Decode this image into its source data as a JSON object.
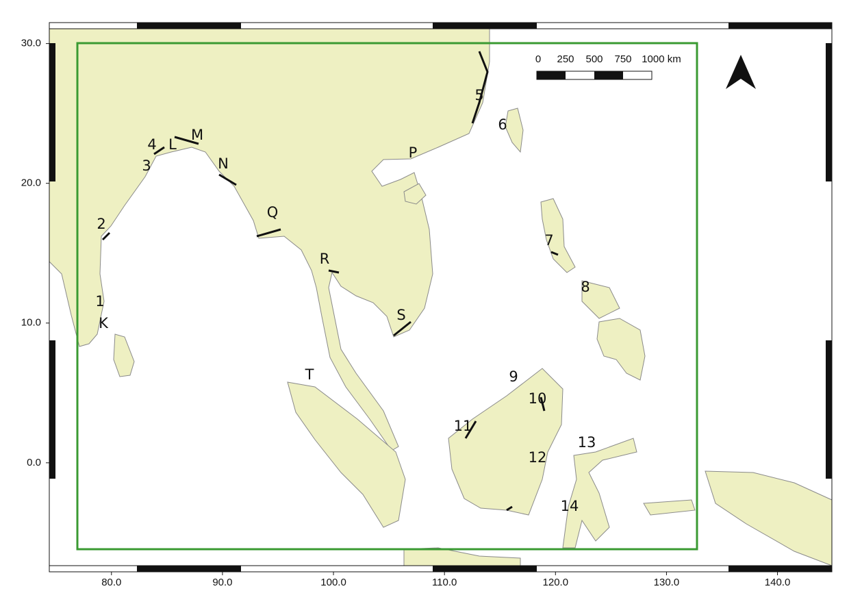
{
  "map": {
    "xlim": [
      74.4,
      144.9
    ],
    "ylim": [
      -7.8,
      31.5
    ],
    "xticks": [
      {
        "value": 80,
        "label": "80.0"
      },
      {
        "value": 90,
        "label": "90.0"
      },
      {
        "value": 100,
        "label": "100.0"
      },
      {
        "value": 110,
        "label": "110.0"
      },
      {
        "value": 120,
        "label": "120.0"
      },
      {
        "value": 130,
        "label": "130.0"
      },
      {
        "value": 140,
        "label": "140.0"
      }
    ],
    "yticks": [
      {
        "value": 30,
        "label": "30.0"
      },
      {
        "value": 20,
        "label": "20.0"
      },
      {
        "value": 10,
        "label": "10.0"
      },
      {
        "value": 0,
        "label": "0.0"
      }
    ],
    "scale_bar": [
      "0",
      "250",
      "500",
      "750",
      "1000 km"
    ],
    "sites": [
      "4",
      "L",
      "M",
      "3",
      "N",
      "5",
      "6",
      "P",
      "2",
      "Q",
      "7",
      "R",
      "8",
      "1",
      "K",
      "S",
      "T",
      "9",
      "10",
      "11",
      "12",
      "13",
      "14"
    ]
  }
}
